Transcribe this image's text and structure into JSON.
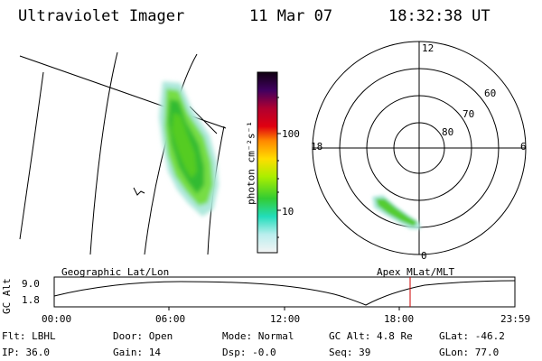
{
  "header": {
    "instrument": "Ultraviolet Imager",
    "date": "11 Mar 07",
    "time": "18:32:38 UT"
  },
  "colorbar": {
    "label": "photon cm⁻²s⁻¹",
    "ticks": [
      "100",
      "10"
    ]
  },
  "polar_plot": {
    "mlt_labels": {
      "top": "12",
      "left": "18",
      "right": "6",
      "bottom": "0"
    },
    "lat_labels": [
      "60",
      "70",
      "80"
    ]
  },
  "orbit_panel": {
    "left_label": "Geographic Lat/Lon",
    "right_label": "Apex MLat/MLT",
    "ylabel": "GC Alt",
    "yticks": [
      "9.0",
      "1.8"
    ],
    "xticks": [
      "00:00",
      "06:00",
      "12:00",
      "18:00",
      "23:59"
    ]
  },
  "info": {
    "row1": [
      {
        "label": "Flt:",
        "value": "LBHL"
      },
      {
        "label": "Door:",
        "value": "Open"
      },
      {
        "label": "Mode:",
        "value": "Normal"
      },
      {
        "label": "GC Alt:",
        "value": "4.8 Re"
      },
      {
        "label": "GLat:",
        "value": "-46.2"
      }
    ],
    "row2": [
      {
        "label": "IP:",
        "value": "36.0"
      },
      {
        "label": "Gain:",
        "value": "14"
      },
      {
        "label": "Dsp:",
        "value": "-0.0"
      },
      {
        "label": "Seq:",
        "value": "39"
      },
      {
        "label": "GLon:",
        "value": "77.0"
      }
    ]
  },
  "colors": {
    "cursor_line": "#cc0000",
    "aurora_high": "#22bb22",
    "aurora_mid": "#88dd22",
    "aurora_low": "#88ddcc"
  }
}
